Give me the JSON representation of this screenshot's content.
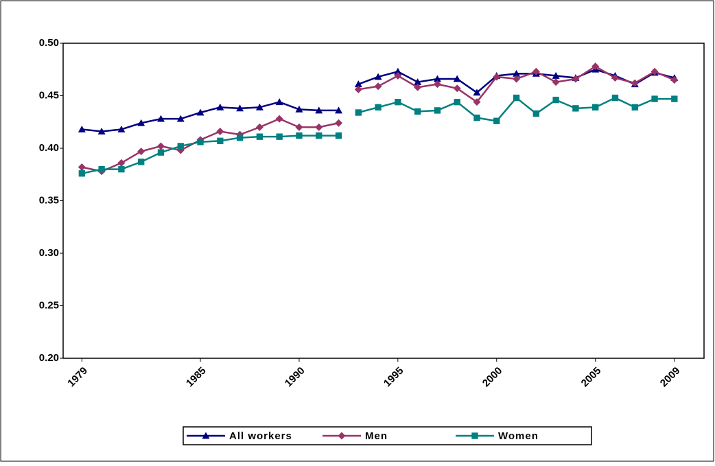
{
  "chart_data": {
    "type": "line",
    "x": [
      1979,
      1980,
      1981,
      1982,
      1983,
      1984,
      1985,
      1986,
      1987,
      1988,
      1989,
      1990,
      1991,
      1992,
      null,
      1993,
      1994,
      1995,
      1996,
      1997,
      1998,
      1999,
      2000,
      2001,
      2002,
      2003,
      2004,
      2005,
      2006,
      2007,
      2008,
      2009
    ],
    "series": [
      {
        "name": "All workers",
        "color": "#000080",
        "marker": "triangle",
        "values": [
          0.418,
          0.416,
          0.418,
          0.424,
          0.428,
          0.428,
          0.434,
          0.439,
          0.438,
          0.439,
          0.444,
          0.437,
          0.436,
          0.436,
          null,
          0.461,
          0.468,
          0.473,
          0.463,
          0.466,
          0.466,
          0.453,
          0.469,
          0.471,
          0.471,
          0.469,
          0.467,
          0.475,
          0.469,
          0.461,
          0.472,
          0.467
        ]
      },
      {
        "name": "Men",
        "color": "#993366",
        "marker": "diamond",
        "values": [
          0.382,
          0.378,
          0.386,
          0.397,
          0.402,
          0.398,
          0.408,
          0.416,
          0.413,
          0.42,
          0.428,
          0.42,
          0.42,
          0.424,
          null,
          0.456,
          0.459,
          0.469,
          0.458,
          0.461,
          0.457,
          0.444,
          0.468,
          0.466,
          0.473,
          0.463,
          0.466,
          0.478,
          0.467,
          0.462,
          0.473,
          0.465
        ]
      },
      {
        "name": "Women",
        "color": "#008080",
        "marker": "square",
        "values": [
          0.376,
          0.38,
          0.38,
          0.387,
          0.396,
          0.402,
          0.406,
          0.407,
          0.41,
          0.411,
          0.411,
          0.412,
          0.412,
          0.412,
          null,
          0.434,
          0.439,
          0.444,
          0.435,
          0.436,
          0.444,
          0.429,
          0.426,
          0.448,
          0.433,
          0.446,
          0.438,
          0.439,
          0.448,
          0.439,
          0.447,
          0.447
        ]
      }
    ],
    "xlim": [
      1978.05,
      2010.5
    ],
    "xticks": [
      1979,
      1985,
      1990,
      1995,
      2000,
      2005,
      2009
    ],
    "ylim": [
      0.2,
      0.5
    ],
    "yticks": [
      {
        "value": 0.2,
        "label": "0.20"
      },
      {
        "value": 0.25,
        "label": "0.25"
      },
      {
        "value": 0.3,
        "label": "0.30"
      },
      {
        "value": 0.35,
        "label": "0.35"
      },
      {
        "value": 0.4,
        "label": "0.40"
      },
      {
        "value": 0.45,
        "label": "0.45"
      },
      {
        "value": 0.5,
        "label": "0.50"
      }
    ],
    "grid": false,
    "legend": "bottom"
  }
}
